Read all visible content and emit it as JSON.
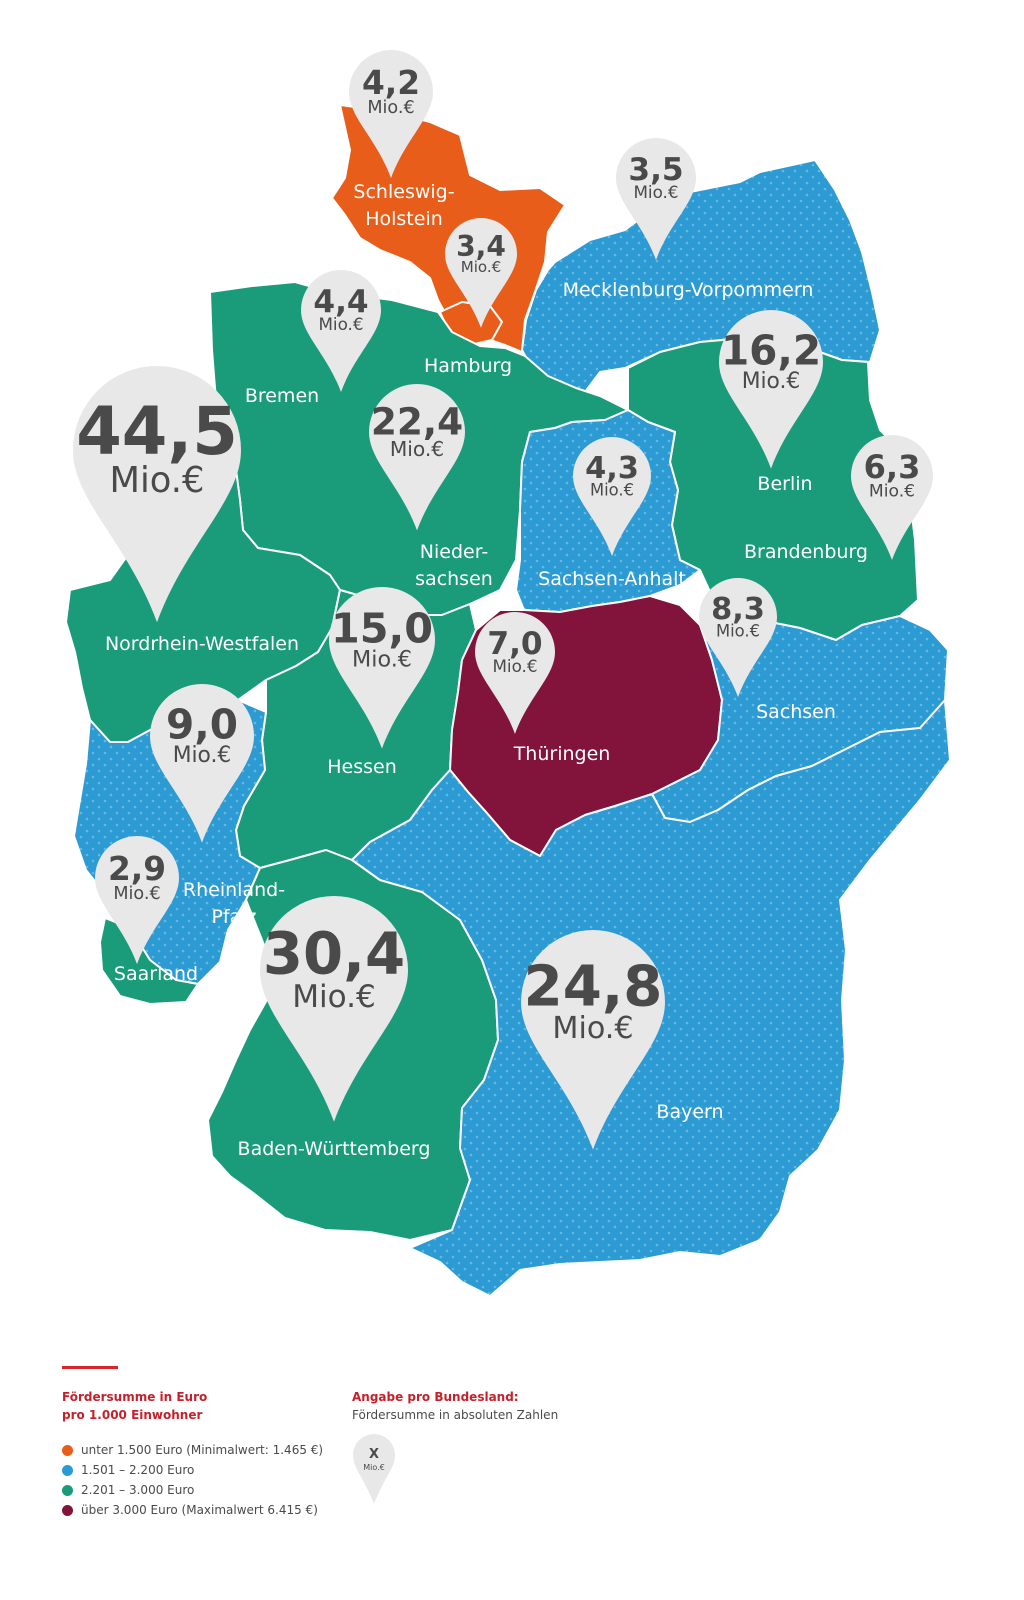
{
  "colors": {
    "orange": "#e85d1a",
    "blue": "#2c9ad3",
    "green": "#1a9b7a",
    "purple": "#82143c",
    "pin": "#e8e8e8",
    "text_dark": "#4a4a4a",
    "accent_red": "#c8202a"
  },
  "pin_unit": "Mio.€",
  "states": [
    {
      "name": "Schleswig-Holstein",
      "label_lines": [
        "Schleswig-",
        "Holstein"
      ],
      "category": "orange",
      "value": "4,2"
    },
    {
      "name": "Hamburg",
      "label_lines": [
        "Hamburg"
      ],
      "category": "orange",
      "value": "3,4"
    },
    {
      "name": "Mecklenburg-Vorpommern",
      "label_lines": [
        "Mecklenburg-Vorpommern"
      ],
      "category": "blue",
      "value": "3,5"
    },
    {
      "name": "Bremen",
      "label_lines": [
        "Bremen"
      ],
      "category": "purple",
      "value": "4,4"
    },
    {
      "name": "Niedersachsen",
      "label_lines": [
        "Nieder-",
        "sachsen"
      ],
      "category": "green",
      "value": "22,4"
    },
    {
      "name": "Berlin",
      "label_lines": [
        "Berlin"
      ],
      "category": "purple",
      "value": "16,2"
    },
    {
      "name": "Brandenburg",
      "label_lines": [
        "Brandenburg"
      ],
      "category": "green",
      "value": "6,3"
    },
    {
      "name": "Sachsen-Anhalt",
      "label_lines": [
        "Sachsen-Anhalt"
      ],
      "category": "blue",
      "value": "4,3"
    },
    {
      "name": "Nordrhein-Westfalen",
      "label_lines": [
        "Nordrhein-Westfalen"
      ],
      "category": "green",
      "value": "44,5"
    },
    {
      "name": "Hessen",
      "label_lines": [
        "Hessen"
      ],
      "category": "green",
      "value": "15,0"
    },
    {
      "name": "Thüringen",
      "label_lines": [
        "Thüringen"
      ],
      "category": "purple",
      "value": "7,0"
    },
    {
      "name": "Sachsen",
      "label_lines": [
        "Sachsen"
      ],
      "category": "blue",
      "value": "8,3"
    },
    {
      "name": "Rheinland-Pfalz",
      "label_lines": [
        "Rheinland-",
        "Pfalz"
      ],
      "category": "blue",
      "value": "9,0"
    },
    {
      "name": "Saarland",
      "label_lines": [
        "Saarland"
      ],
      "category": "green",
      "value": "2,9"
    },
    {
      "name": "Baden-Württemberg",
      "label_lines": [
        "Baden-Württemberg"
      ],
      "category": "green",
      "value": "30,4"
    },
    {
      "name": "Bayern",
      "label_lines": [
        "Bayern"
      ],
      "category": "blue",
      "value": "24,8"
    }
  ],
  "legend": {
    "title_line1": "Fördersumme in Euro",
    "title_line2": "pro 1.000 Einwohner",
    "items": [
      {
        "label": "unter 1.500 Euro (Minimalwert: 1.465 €)",
        "color": "#e85d1a"
      },
      {
        "label": "1.501 – 2.200 Euro",
        "color": "#2c9ad3"
      },
      {
        "label": "2.201 – 3.000 Euro",
        "color": "#1a9b7a"
      },
      {
        "label": "über 3.000 Euro (Maximalwert 6.415 €)",
        "color": "#82143c"
      }
    ],
    "pin_title": "Angabe pro Bundesland:",
    "pin_subtitle": "Fördersumme in absoluten Zahlen",
    "pin_example_value": "X",
    "pin_example_unit": "Mio.€"
  }
}
